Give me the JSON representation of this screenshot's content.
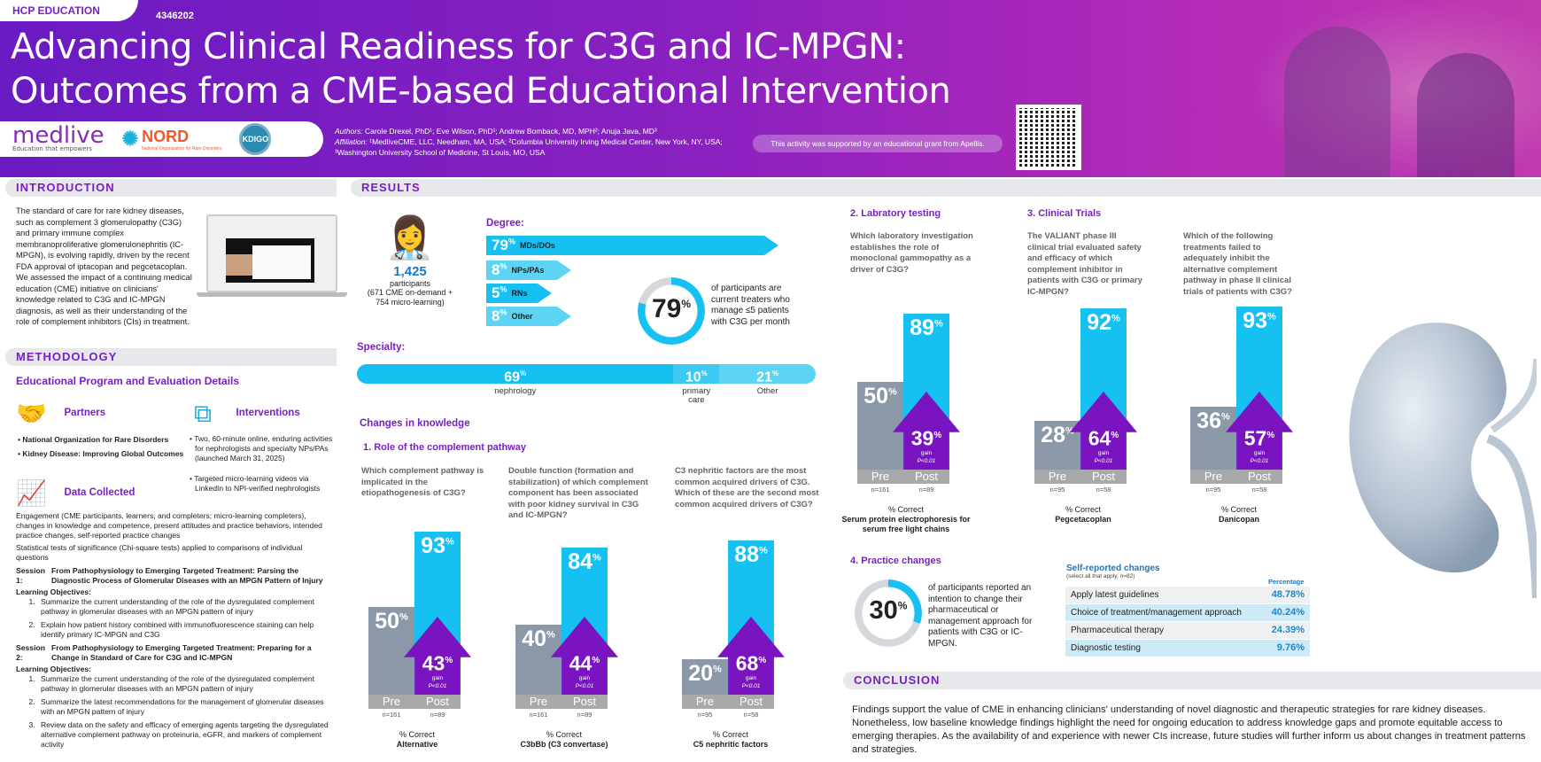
{
  "header": {
    "tag": "HCP EDUCATION",
    "code": "4346202",
    "title_line1": "Advancing Clinical Readiness for C3G and IC-MPGN:",
    "title_line2": "Outcomes from a CME-based Educational Intervention",
    "logos": {
      "medlive": "medlive",
      "medlive_tagline": "Education that empowers",
      "nord": "NORD",
      "nord_sub": "National Organization for Rare Disorders",
      "kdigo": "KDIGO"
    },
    "authors_label": "Authors:",
    "authors": "Carole Drexel, PhD¹; Eve Wilson, PhD¹; Andrew Bomback, MD, MPH²; Anuja Java, MD³",
    "affiliation_label": "Affiliation:",
    "affiliation1": "¹MedliveCME, LLC, Needham, MA, USA; ²Columbia University Irving Medical Center, New York, NY, USA;",
    "affiliation2": "³Washington University School of Medicine, St Louis, MO, USA",
    "grant": "This activity was supported by an educational grant from Apellis."
  },
  "introduction": {
    "heading": "INTRODUCTION",
    "text": "The standard of care for rare kidney diseases, such as complement 3 glomerulopathy (C3G) and primary immune complex membranoproliferative glomerulonephritis (IC-MPGN), is evolving rapidly, driven by the recent FDA approval of iptacopan and pegcetacoplan. We assessed the impact of a continuing medical education (CME) initiative on clinicians' knowledge related to C3G and IC-MPGN diagnosis, as well as their understanding of the role of complement inhibitors (CIs) in treatment."
  },
  "methodology": {
    "heading": "METHODOLOGY",
    "subheading": "Educational Program and Evaluation Details",
    "partners_label": "Partners",
    "partners": [
      "National Organization for Rare Disorders",
      "Kidney Disease: Improving Global Outcomes"
    ],
    "interventions_label": "Interventions",
    "interventions": [
      "Two, 60-minute online, enduring activities for nephrologists and specialty NPs/PAs (launched March 31, 2025)",
      "Targeted micro-learning videos via LinkedIn to NPI-verified nephrologists"
    ],
    "data_label": "Data Collected",
    "data_text": "Engagement (CME participants, learners, and completers; micro-learning completers), changes in knowledge and competence, present attitudes and practice behaviors, intended practice changes, self-reported practice changes",
    "stats_text": "Statistical tests of significance (Chi-square tests) applied to comparisons of individual questions",
    "session1_label": "Session 1:",
    "session1": "From Pathophysiology to Emerging Targeted Treatment: Parsing the Diagnostic Process of Glomerular Diseases with an MPGN Pattern of Injury",
    "lo_label": "Learning Objectives:",
    "session1_objectives": [
      "Summarize the current understanding of the role of the dysregulated complement pathway in glomerular diseases with an MPGN pattern of injury",
      "Explain how patient history combined with immunofluorescence staining can help identify primary IC-MPGN and C3G"
    ],
    "session2_label": "Session 2:",
    "session2": "From Pathophysiology to Emerging Targeted Treatment: Preparing for a Change in Standard of Care for C3G and IC-MPGN",
    "session2_objectives": [
      "Summarize the current understanding of the role of the dysregulated complement pathway in glomerular diseases with an MPGN pattern of injury",
      "Summarize the latest recommendations for the management of glomerular diseases with an MPGN pattern of injury",
      "Review data on the safety and efficacy of emerging agents targeting the dysregulated alternative complement pathway on proteinuria, eGFR, and markers of complement activity"
    ]
  },
  "results": {
    "heading": "RESULTS",
    "participants": "1,425",
    "participants_label": "participants",
    "participants_detail": "(671 CME on-demand + 754 micro-learning)",
    "degree_label": "Degree:",
    "degree": [
      {
        "value": 79,
        "label": "MDs/DOs",
        "color": "#16c0f0"
      },
      {
        "value": 8,
        "label": "NPs/PAs",
        "color": "#5ed4f5"
      },
      {
        "value": 5,
        "label": "RNs",
        "color": "#16c0f0"
      },
      {
        "value": 8,
        "label": "Other",
        "color": "#5ed4f5"
      }
    ],
    "treaters_pct": 79,
    "treaters_text": "of participants are current treaters who manage ≤5 patients with C3G per month",
    "specialty_label": "Specialty:",
    "specialty": [
      {
        "value": 69,
        "label": "nephrology",
        "color": "#16c0f0"
      },
      {
        "value": 10,
        "label": "primary care",
        "color": "#3ccaf2"
      },
      {
        "value": 21,
        "label": "Other",
        "color": "#5ed4f5"
      }
    ],
    "knowledge_heading": "Changes in knowledge",
    "section1": "1.   Role of the complement pathway",
    "section2": "2.   Labratory testing",
    "section3": "3.   Clinical Trials",
    "section4": "4.   Practice changes",
    "pre_label": "Pre",
    "post_label": "Post",
    "correct_label": "% Correct",
    "gain_label": "gain",
    "p_label": "P<0.01",
    "practice_pct": 30,
    "practice_text": "of participants reported an intention to change their pharmaceutical or management approach for patients with C3G or IC-MPGN.",
    "self_reported": {
      "title": "Self-reported changes",
      "subtitle": "(select all that apply, n=82)",
      "col_header": "Percentage",
      "rows": [
        {
          "label": "Apply latest guidelines",
          "value": "48.78%"
        },
        {
          "label": "Choice of treatment/management approach",
          "value": "40.24%"
        },
        {
          "label": "Pharmaceutical therapy",
          "value": "24.39%"
        },
        {
          "label": "Diagnostic testing",
          "value": "9.76%"
        }
      ]
    }
  },
  "chart_data": [
    {
      "type": "bar",
      "title": "Which complement pathway is implicated in the etiopathogenesis of C3G?",
      "categories": [
        "Pre",
        "Post"
      ],
      "values": [
        50,
        93
      ],
      "gain": 43,
      "n": [
        "n=161",
        "n=89"
      ],
      "ylabel": "% Correct",
      "answer": "Alternative",
      "ylim": [
        0,
        100
      ]
    },
    {
      "type": "bar",
      "title": "Double function (formation and stabilization) of which complement component has been associated with poor kidney survival in C3G and IC-MPGN?",
      "categories": [
        "Pre",
        "Post"
      ],
      "values": [
        40,
        84
      ],
      "gain": 44,
      "n": [
        "n=161",
        "n=89"
      ],
      "ylabel": "% Correct",
      "answer": "C3bBb (C3 convertase)",
      "ylim": [
        0,
        100
      ]
    },
    {
      "type": "bar",
      "title": "C3 nephritic factors are the most common acquired drivers of C3G. Which of these are the second most common acquired drivers of C3G?",
      "categories": [
        "Pre",
        "Post"
      ],
      "values": [
        20,
        88
      ],
      "gain": 68,
      "n": [
        "n=95",
        "n=58"
      ],
      "ylabel": "% Correct",
      "answer": "C5 nephritic factors",
      "ylim": [
        0,
        100
      ]
    },
    {
      "type": "bar",
      "title": "Which laboratory investigation establishes the role of monoclonal gammopathy as a driver of C3G?",
      "categories": [
        "Pre",
        "Post"
      ],
      "values": [
        50,
        89
      ],
      "gain": 39,
      "n": [
        "n=161",
        "n=89"
      ],
      "ylabel": "% Correct",
      "answer": "Serum protein electrophoresis for serum free light chains",
      "ylim": [
        0,
        100
      ]
    },
    {
      "type": "bar",
      "title": "The VALIANT phase III clinical trial evaluated safety and efficacy of which complement inhibitor in patients with C3G or primary IC-MPGN?",
      "categories": [
        "Pre",
        "Post"
      ],
      "values": [
        28,
        92
      ],
      "gain": 64,
      "n": [
        "n=95",
        "n=58"
      ],
      "ylabel": "% Correct",
      "answer": "Pegcetacoplan",
      "ylim": [
        0,
        100
      ]
    },
    {
      "type": "bar",
      "title": "Which of the following treatments failed to adequately inhibit the alternative complement pathway in phase II clinical trials of patients with C3G?",
      "categories": [
        "Pre",
        "Post"
      ],
      "values": [
        36,
        93
      ],
      "gain": 57,
      "n": [
        "n=95",
        "n=58"
      ],
      "ylabel": "% Correct",
      "answer": "Danicopan",
      "ylim": [
        0,
        100
      ]
    }
  ],
  "conclusion": {
    "heading": "CONCLUSION",
    "text": "Findings support the value of CME in enhancing clinicians' understanding of novel diagnostic and therapeutic strategies for rare kidney diseases. Nonetheless, low baseline knowledge findings highlight the need for ongoing education to address knowledge gaps and promote equitable access to emerging therapies. As the availability of and experience with newer CIs increase, future studies will further inform us about changes in treatment patterns and strategies."
  }
}
